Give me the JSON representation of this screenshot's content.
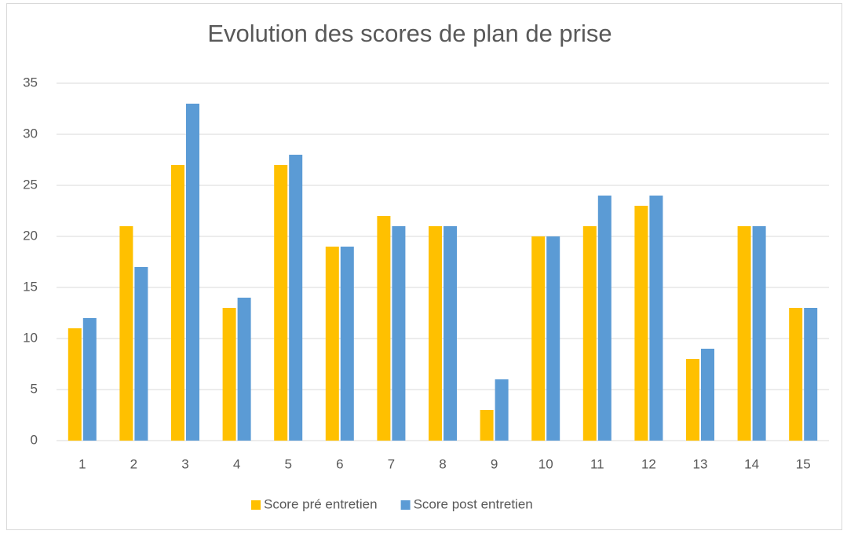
{
  "chart_data": {
    "type": "bar",
    "title": "Evolution des scores de plan de prise",
    "categories": [
      "1",
      "2",
      "3",
      "4",
      "5",
      "6",
      "7",
      "8",
      "9",
      "10",
      "11",
      "12",
      "13",
      "14",
      "15"
    ],
    "series": [
      {
        "name": "Score pré entretien",
        "color": "#FFC000",
        "values": [
          11,
          21,
          27,
          13,
          27,
          19,
          22,
          21,
          3,
          20,
          21,
          23,
          8,
          21,
          13
        ]
      },
      {
        "name": "Score post entretien",
        "color": "#5B9BD5",
        "values": [
          12,
          17,
          33,
          14,
          28,
          19,
          21,
          21,
          6,
          20,
          24,
          24,
          9,
          21,
          13
        ]
      }
    ],
    "ylim": [
      0,
      35
    ],
    "yticks": [
      0,
      5,
      10,
      15,
      20,
      25,
      30,
      35
    ],
    "grid": true,
    "legend": "bottom"
  }
}
